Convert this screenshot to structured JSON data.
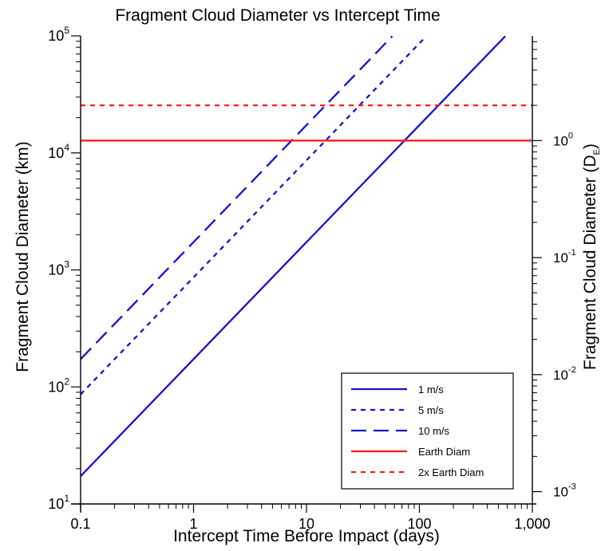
{
  "chart_data": {
    "type": "line",
    "title": "Fragment Cloud Diameter vs Intercept Time",
    "xlabel": "Intercept Time Before Impact (days)",
    "ylabel": "Fragment Cloud Diameter (km)",
    "y2label": "Fragment Cloud Diameter (D",
    "y2label_sub": "E",
    "y2label_end": ")",
    "xscale": "log",
    "yscale": "log",
    "xlim": [
      0.1,
      1000
    ],
    "ylim": [
      10,
      100000
    ],
    "x_ticks": [
      {
        "value": 0.1,
        "label": "0.1"
      },
      {
        "value": 1,
        "label": "1"
      },
      {
        "value": 10,
        "label": "10"
      },
      {
        "value": 100,
        "label": "100"
      },
      {
        "value": 1000,
        "label": "1,000"
      }
    ],
    "y_ticks": [
      {
        "value": 10,
        "base": "10",
        "exp": "1"
      },
      {
        "value": 100,
        "base": "10",
        "exp": "2"
      },
      {
        "value": 1000,
        "base": "10",
        "exp": "3"
      },
      {
        "value": 10000,
        "base": "10",
        "exp": "4"
      },
      {
        "value": 100000,
        "base": "10",
        "exp": "5"
      }
    ],
    "y2_ticks": [
      {
        "value": 12742,
        "base": "10",
        "exp": "0"
      },
      {
        "value": 1274.2,
        "base": "10",
        "exp": "-1"
      },
      {
        "value": 127.42,
        "base": "10",
        "exp": "-2"
      },
      {
        "value": 12.742,
        "base": "10",
        "exp": "-3"
      }
    ],
    "grid": false,
    "legend_position": "bottom-right",
    "series": [
      {
        "name": "1 m/s",
        "color": "#1515cc",
        "dash": "solid",
        "x": [
          0.1,
          575
        ],
        "y": [
          17.28,
          99360
        ]
      },
      {
        "name": "5 m/s",
        "color": "#1515cc",
        "dash": "short",
        "x": [
          0.1,
          115
        ],
        "y": [
          86.4,
          99360
        ]
      },
      {
        "name": "10 m/s",
        "color": "#1515cc",
        "dash": "long",
        "x": [
          0.1,
          57.5
        ],
        "y": [
          172.8,
          99360
        ]
      },
      {
        "name": "Earth Diam",
        "color": "#ff1a1a",
        "dash": "solid",
        "x": [
          0.1,
          1000
        ],
        "y": [
          12742,
          12742
        ]
      },
      {
        "name": "2x Earth Diam",
        "color": "#ff1a1a",
        "dash": "short",
        "x": [
          0.1,
          1000
        ],
        "y": [
          25484,
          25484
        ]
      }
    ]
  }
}
